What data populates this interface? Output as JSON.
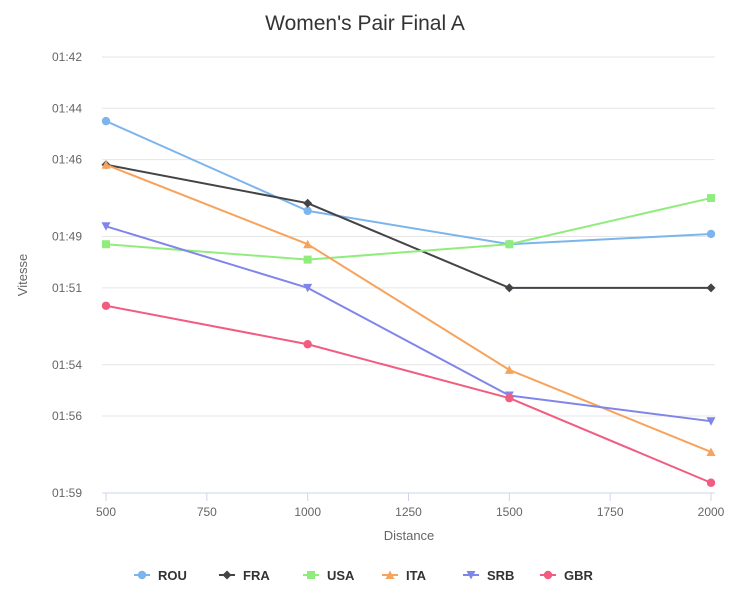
{
  "chart_data": {
    "type": "line",
    "title": "Women's Pair Final A",
    "xlabel": "Distance",
    "ylabel": "Vitesse",
    "x": [
      500,
      1000,
      1500,
      2000
    ],
    "x_ticks": [
      500,
      750,
      1000,
      1250,
      1500,
      1750,
      2000
    ],
    "x_tick_labels": [
      "500",
      "750",
      "1000",
      "1250",
      "1500",
      "1750",
      "2000"
    ],
    "xlim": [
      500,
      2000
    ],
    "ylim_seconds": [
      102,
      119
    ],
    "y_reversed": true,
    "y_ticks_seconds": [
      102,
      104,
      106,
      109,
      111,
      114,
      116,
      119
    ],
    "y_tick_labels": [
      "01:42",
      "01:44",
      "01:46",
      "01:49",
      "01:51",
      "01:54",
      "01:56",
      "01:59"
    ],
    "grid": true,
    "legend_position": "bottom-center",
    "series": [
      {
        "name": "ROU",
        "color": "#7cb5ec",
        "marker": "circle",
        "values_seconds": [
          104.5,
          108.0,
          109.3,
          108.9
        ]
      },
      {
        "name": "FRA",
        "color": "#434348",
        "marker": "diamond",
        "values_seconds": [
          106.2,
          107.7,
          111.0,
          111.0
        ]
      },
      {
        "name": "USA",
        "color": "#90ed7d",
        "marker": "square",
        "values_seconds": [
          109.3,
          109.9,
          109.3,
          107.5
        ]
      },
      {
        "name": "ITA",
        "color": "#f7a35c",
        "marker": "triangle",
        "values_seconds": [
          106.2,
          109.3,
          114.2,
          117.4
        ]
      },
      {
        "name": "SRB",
        "color": "#8085e9",
        "marker": "triangle-down",
        "values_seconds": [
          108.6,
          111.0,
          115.2,
          116.2
        ]
      },
      {
        "name": "GBR",
        "color": "#f15c80",
        "marker": "circle",
        "values_seconds": [
          111.7,
          113.2,
          115.3,
          118.6
        ]
      }
    ]
  }
}
